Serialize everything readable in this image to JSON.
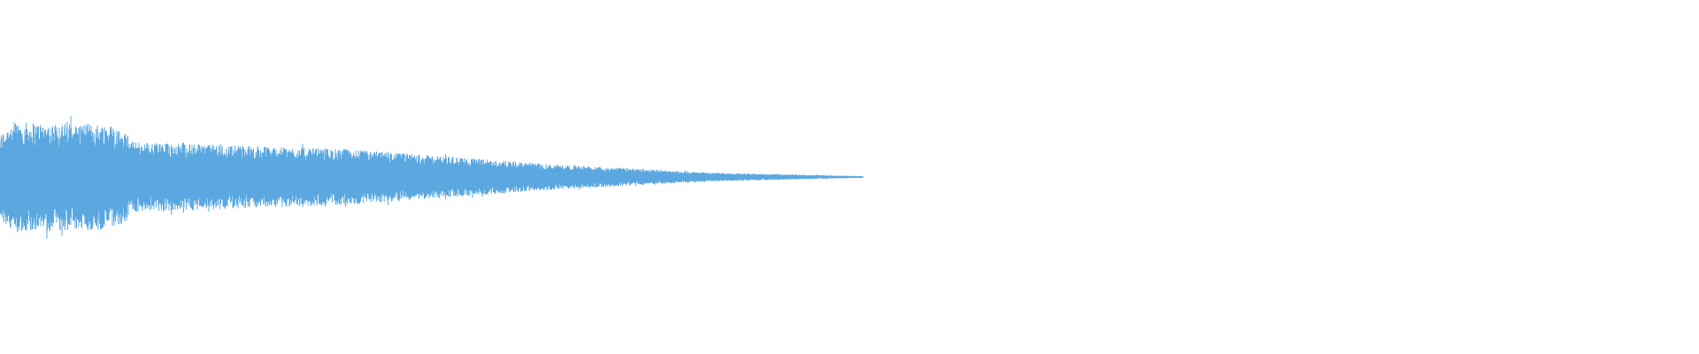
{
  "waveform": {
    "color": "#5ba8e0"
  }
}
